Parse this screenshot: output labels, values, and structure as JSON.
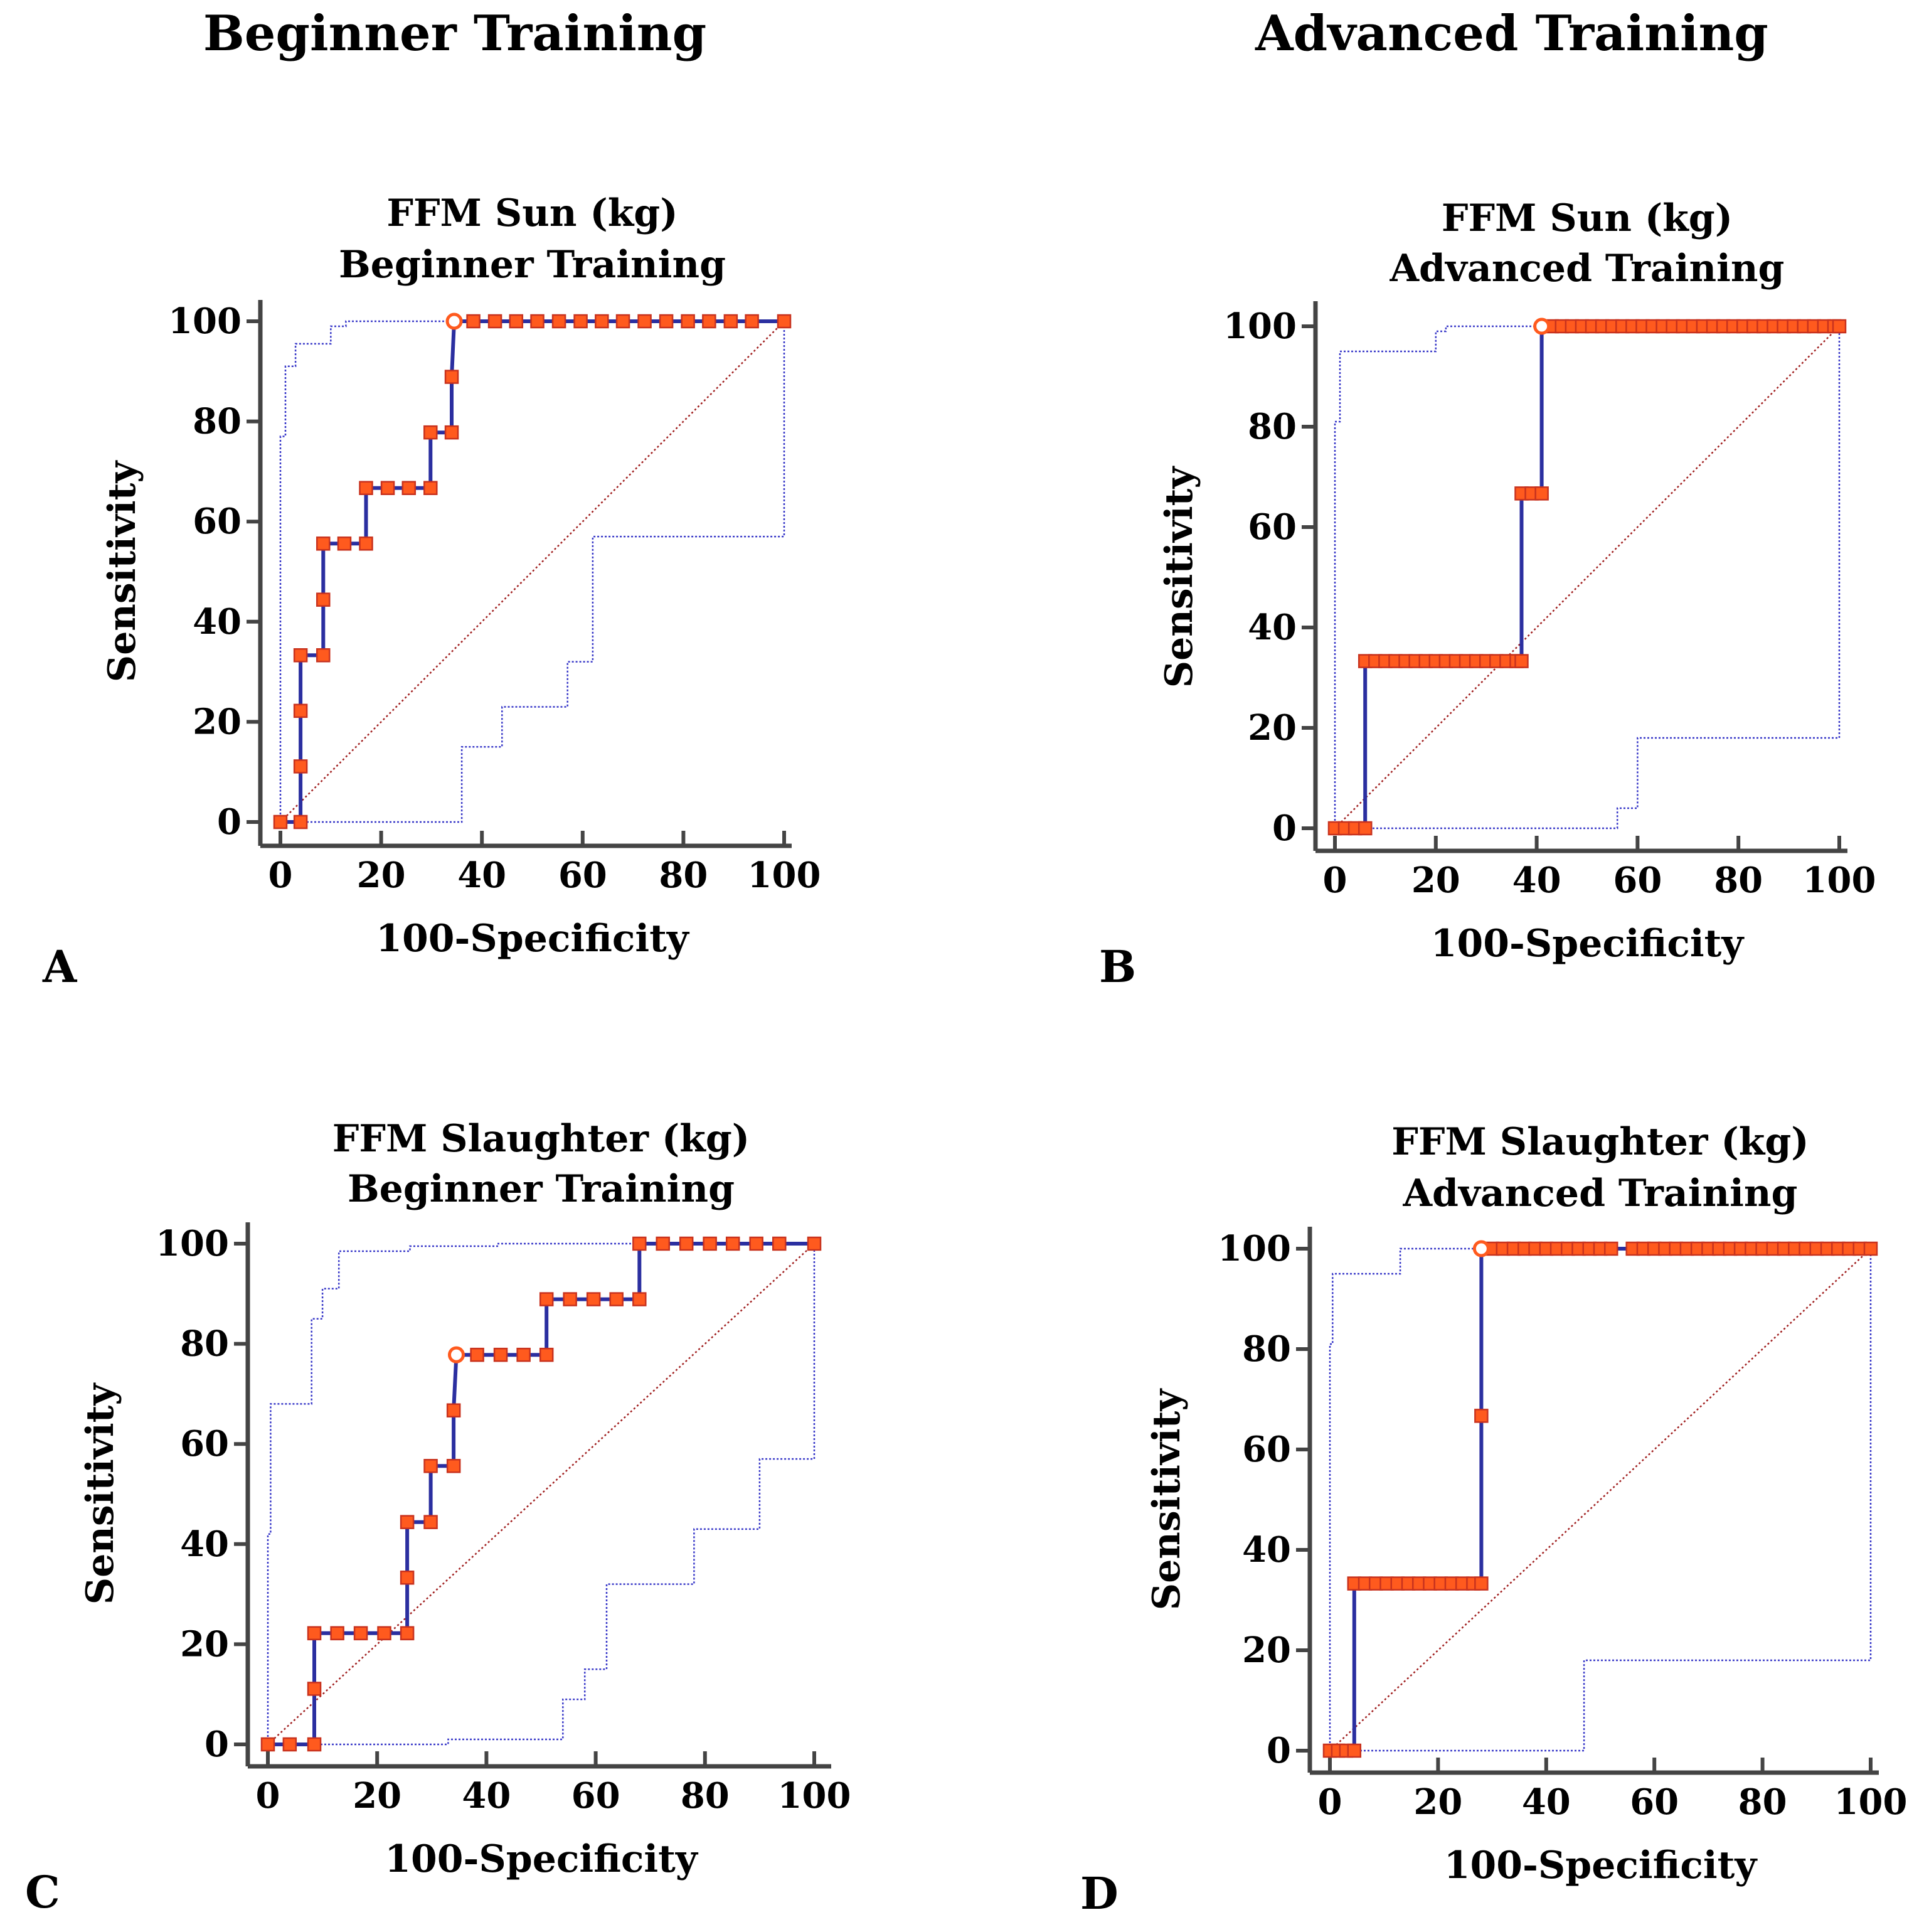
{
  "column_headers": {
    "left": "Beginner Training",
    "right": "Advanced Training"
  },
  "colors": {
    "roc": "#2b2fa0",
    "marker_fill": "#ff5a1e",
    "marker_edge": "#c8321e",
    "ci": "#3737c8",
    "diagonal": "#a01e1e",
    "axis": "#444444"
  },
  "chart_data": [
    {
      "panel": "A",
      "type": "line",
      "title": [
        "FFM Sun (kg)",
        "Beginner Training"
      ],
      "xlabel": "100-Specificity",
      "ylabel": "Sensitivity",
      "xlim": [
        0,
        100
      ],
      "ylim": [
        0,
        100
      ],
      "xticks": [
        0,
        20,
        40,
        60,
        80,
        100
      ],
      "yticks": [
        0,
        20,
        40,
        60,
        80,
        100
      ],
      "roc": [
        [
          0,
          0
        ],
        [
          4,
          0
        ],
        [
          4,
          11.1
        ],
        [
          4,
          22.2
        ],
        [
          4,
          33.3
        ],
        [
          8.5,
          33.3
        ],
        [
          8.5,
          44.4
        ],
        [
          8.5,
          55.6
        ],
        [
          12.7,
          55.6
        ],
        [
          17,
          55.6
        ],
        [
          17,
          66.7
        ],
        [
          21.3,
          66.7
        ],
        [
          25.5,
          66.7
        ],
        [
          29.8,
          66.7
        ],
        [
          29.8,
          77.8
        ],
        [
          34,
          77.8
        ],
        [
          34,
          88.9
        ],
        [
          34.5,
          100
        ],
        [
          38.3,
          100
        ],
        [
          42.6,
          100
        ],
        [
          46.8,
          100
        ],
        [
          51,
          100
        ],
        [
          55.3,
          100
        ],
        [
          59.6,
          100
        ],
        [
          63.8,
          100
        ],
        [
          68,
          100
        ],
        [
          72.3,
          100
        ],
        [
          76.6,
          100
        ],
        [
          80.9,
          100
        ],
        [
          85.1,
          100
        ],
        [
          89.4,
          100
        ],
        [
          93.6,
          100
        ],
        [
          100,
          100
        ]
      ],
      "optimal_point": [
        34.5,
        100
      ],
      "ci_upper": [
        [
          0,
          0
        ],
        [
          0,
          77
        ],
        [
          1,
          77
        ],
        [
          1,
          91
        ],
        [
          3,
          91
        ],
        [
          3,
          95.5
        ],
        [
          10,
          95.5
        ],
        [
          10,
          99
        ],
        [
          13,
          99
        ],
        [
          13,
          100
        ],
        [
          100,
          100
        ]
      ],
      "ci_lower": [
        [
          0,
          0
        ],
        [
          36,
          0
        ],
        [
          36,
          15
        ],
        [
          44,
          15
        ],
        [
          44,
          23
        ],
        [
          57,
          23
        ],
        [
          57,
          32
        ],
        [
          62,
          32
        ],
        [
          62,
          57
        ],
        [
          100,
          57
        ],
        [
          100,
          100
        ]
      ]
    },
    {
      "panel": "B",
      "type": "line",
      "title": [
        "FFM Sun (kg)",
        "Advanced Training"
      ],
      "xlabel": "100-Specificity",
      "ylabel": "Sensitivity",
      "xlim": [
        0,
        100
      ],
      "ylim": [
        0,
        100
      ],
      "xticks": [
        0,
        20,
        40,
        60,
        80,
        100
      ],
      "yticks": [
        0,
        20,
        40,
        60,
        80,
        100
      ],
      "roc": [
        [
          0,
          0
        ],
        [
          6,
          0
        ],
        [
          6,
          33.3
        ],
        [
          37,
          33.3
        ],
        [
          37,
          66.7
        ],
        [
          41,
          66.7
        ],
        [
          41,
          100
        ],
        [
          100,
          100
        ]
      ],
      "markers_x": {
        "0": [
          0,
          2,
          4,
          6
        ],
        "33.3": [
          6,
          8,
          10,
          12,
          14,
          16,
          18,
          20,
          22,
          24,
          26,
          28,
          30,
          32,
          34,
          36,
          37
        ],
        "66.7": [
          37,
          39,
          41
        ],
        "100": [
          43,
          45,
          47,
          49,
          51,
          53,
          55,
          57,
          59,
          61,
          63,
          65,
          67,
          69,
          71,
          73,
          75,
          77,
          79,
          81,
          83,
          85,
          87,
          89,
          91,
          93,
          95,
          97,
          99,
          100
        ]
      },
      "optimal_point": [
        41,
        100
      ],
      "ci_upper": [
        [
          0,
          0
        ],
        [
          0,
          81
        ],
        [
          1,
          81
        ],
        [
          1,
          95
        ],
        [
          20,
          95
        ],
        [
          20,
          99
        ],
        [
          22,
          99
        ],
        [
          22,
          100
        ],
        [
          100,
          100
        ]
      ],
      "ci_lower": [
        [
          0,
          0
        ],
        [
          56,
          0
        ],
        [
          56,
          4
        ],
        [
          60,
          4
        ],
        [
          60,
          18
        ],
        [
          100,
          18
        ],
        [
          100,
          100
        ]
      ]
    },
    {
      "panel": "C",
      "type": "line",
      "title": [
        "FFM Slaughter (kg)",
        "Beginner Training"
      ],
      "xlabel": "100-Specificity",
      "ylabel": "Sensitivity",
      "xlim": [
        0,
        100
      ],
      "ylim": [
        0,
        100
      ],
      "xticks": [
        0,
        20,
        40,
        60,
        80,
        100
      ],
      "yticks": [
        0,
        20,
        40,
        60,
        80,
        100
      ],
      "roc": [
        [
          0,
          0
        ],
        [
          4,
          0
        ],
        [
          8.5,
          0
        ],
        [
          8.5,
          11.1
        ],
        [
          8.5,
          22.2
        ],
        [
          12.7,
          22.2
        ],
        [
          17,
          22.2
        ],
        [
          21.3,
          22.2
        ],
        [
          25.5,
          22.2
        ],
        [
          25.5,
          33.3
        ],
        [
          25.5,
          44.4
        ],
        [
          29.8,
          44.4
        ],
        [
          29.8,
          55.6
        ],
        [
          34,
          55.6
        ],
        [
          34,
          66.7
        ],
        [
          34.5,
          77.8
        ],
        [
          38.3,
          77.8
        ],
        [
          42.6,
          77.8
        ],
        [
          46.8,
          77.8
        ],
        [
          51,
          77.8
        ],
        [
          51,
          88.9
        ],
        [
          55.3,
          88.9
        ],
        [
          59.6,
          88.9
        ],
        [
          63.8,
          88.9
        ],
        [
          68,
          88.9
        ],
        [
          68,
          100
        ],
        [
          72.3,
          100
        ],
        [
          76.6,
          100
        ],
        [
          80.9,
          100
        ],
        [
          85.1,
          100
        ],
        [
          89.4,
          100
        ],
        [
          93.6,
          100
        ],
        [
          100,
          100
        ]
      ],
      "optimal_point": [
        34.5,
        77.8
      ],
      "ci_upper": [
        [
          0,
          0
        ],
        [
          0,
          42
        ],
        [
          0.5,
          42
        ],
        [
          0.5,
          68
        ],
        [
          8,
          68
        ],
        [
          8,
          85
        ],
        [
          10,
          85
        ],
        [
          10,
          91
        ],
        [
          13,
          91
        ],
        [
          13,
          98.5
        ],
        [
          26,
          98.5
        ],
        [
          26,
          99.5
        ],
        [
          42,
          99.5
        ],
        [
          42,
          100
        ],
        [
          100,
          100
        ]
      ],
      "ci_lower": [
        [
          0,
          0
        ],
        [
          33,
          0
        ],
        [
          33,
          1
        ],
        [
          54,
          1
        ],
        [
          54,
          9
        ],
        [
          58,
          9
        ],
        [
          58,
          15
        ],
        [
          62,
          15
        ],
        [
          62,
          32
        ],
        [
          78,
          32
        ],
        [
          78,
          43
        ],
        [
          90,
          43
        ],
        [
          90,
          57
        ],
        [
          100,
          57
        ],
        [
          100,
          100
        ]
      ]
    },
    {
      "panel": "D",
      "type": "line",
      "title": [
        "FFM Slaughter (kg)",
        "Advanced Training"
      ],
      "xlabel": "100-Specificity",
      "ylabel": "Sensitivity",
      "xlim": [
        0,
        100
      ],
      "ylim": [
        0,
        100
      ],
      "xticks": [
        0,
        20,
        40,
        60,
        80,
        100
      ],
      "yticks": [
        0,
        20,
        40,
        60,
        80,
        100
      ],
      "roc": [
        [
          0,
          0
        ],
        [
          4.5,
          0
        ],
        [
          4.5,
          33.3
        ],
        [
          28,
          33.3
        ],
        [
          28,
          66.7
        ],
        [
          28,
          100
        ],
        [
          100,
          100
        ]
      ],
      "markers_x": {
        "0": [
          0,
          1.5,
          3,
          4.5
        ],
        "33.3": [
          4.5,
          6.5,
          8.5,
          10.5,
          12.5,
          14.5,
          16.5,
          18.5,
          20.5,
          22.5,
          24.5,
          26.5,
          28
        ],
        "66.7": [
          28
        ],
        "100": [
          30,
          32,
          34,
          36,
          38,
          40,
          42,
          44,
          46,
          48,
          50,
          52,
          56,
          58,
          60,
          62,
          64,
          66,
          68,
          70,
          72,
          74,
          76,
          78,
          80,
          82,
          84,
          86,
          88,
          90,
          92,
          94,
          96,
          98,
          100
        ]
      },
      "optimal_point": [
        28,
        100
      ],
      "ci_upper": [
        [
          0,
          0
        ],
        [
          0,
          81
        ],
        [
          0.5,
          81
        ],
        [
          0.5,
          95
        ],
        [
          13,
          95
        ],
        [
          13,
          100
        ],
        [
          100,
          100
        ]
      ],
      "ci_lower": [
        [
          0,
          0
        ],
        [
          47,
          0
        ],
        [
          47,
          18
        ],
        [
          100,
          18
        ],
        [
          100,
          100
        ]
      ]
    }
  ]
}
